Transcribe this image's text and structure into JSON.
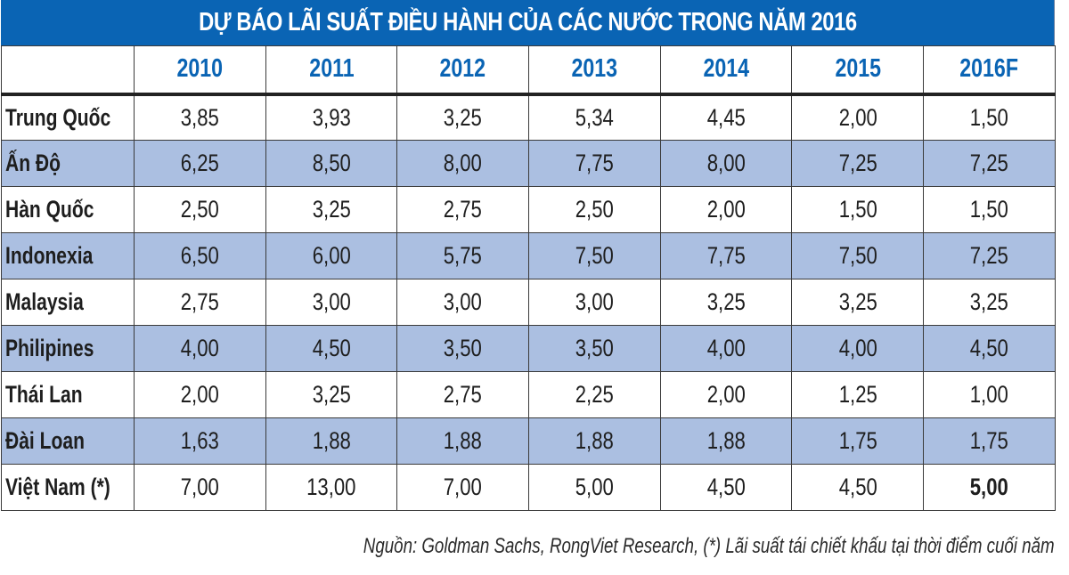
{
  "title": "DỰ BÁO LÃI SUẤT ĐIỀU HÀNH CỦA CÁC NƯỚC TRONG NĂM 2016",
  "header": {
    "corner": "",
    "years": [
      "2010",
      "2011",
      "2012",
      "2013",
      "2014",
      "2015",
      "2016F"
    ]
  },
  "rows": [
    {
      "country": "Trung Quốc",
      "values": [
        "3,85",
        "3,93",
        "3,25",
        "5,34",
        "4,45",
        "2,00",
        "1,50"
      ]
    },
    {
      "country": "Ấn Độ",
      "values": [
        "6,25",
        "8,50",
        "8,00",
        "7,75",
        "8,00",
        "7,25",
        "7,25"
      ]
    },
    {
      "country": "Hàn Quốc",
      "values": [
        "2,50",
        "3,25",
        "2,75",
        "2,50",
        "2,00",
        "1,50",
        "1,50"
      ]
    },
    {
      "country": "Indonexia",
      "values": [
        "6,50",
        "6,00",
        "5,75",
        "7,50",
        "7,75",
        "7,50",
        "7,25"
      ]
    },
    {
      "country": "Malaysia",
      "values": [
        "2,75",
        "3,00",
        "3,00",
        "3,00",
        "3,25",
        "3,25",
        "3,25"
      ]
    },
    {
      "country": "Philipines",
      "values": [
        "4,00",
        "4,50",
        "3,50",
        "3,50",
        "4,00",
        "4,00",
        "4,50"
      ]
    },
    {
      "country": "Thái Lan",
      "values": [
        "2,00",
        "3,25",
        "2,75",
        "2,25",
        "2,00",
        "1,25",
        "1,00"
      ]
    },
    {
      "country": "Đài Loan",
      "values": [
        "1,63",
        "1,88",
        "1,88",
        "1,88",
        "1,88",
        "1,75",
        "1,75"
      ]
    },
    {
      "country": "Việt Nam (*)",
      "values": [
        "7,00",
        "13,00",
        "7,00",
        "5,00",
        "4,50",
        "4,50",
        "5,00"
      ]
    }
  ],
  "source": "Nguồn: Goldman Sachs, RongViet Research, (*) Lãi suất tái chiết khấu tại thời điểm cuối năm",
  "colors": {
    "title_bg": "#0a64b4",
    "header_text": "#0a64b4",
    "alt_row_bg": "#abbfe1",
    "border": "#3a3a3a"
  },
  "chart_data": {
    "type": "table",
    "title": "DỰ BÁO LÃI SUẤT ĐIỀU HÀNH CỦA CÁC NƯỚC TRONG NĂM 2016",
    "columns": [
      "2010",
      "2011",
      "2012",
      "2013",
      "2014",
      "2015",
      "2016F"
    ],
    "categories": [
      "Trung Quốc",
      "Ấn Độ",
      "Hàn Quốc",
      "Indonexia",
      "Malaysia",
      "Philipines",
      "Thái Lan",
      "Đài Loan",
      "Việt Nam (*)"
    ],
    "series": [
      {
        "name": "Trung Quốc",
        "values": [
          3.85,
          3.93,
          3.25,
          5.34,
          4.45,
          2.0,
          1.5
        ]
      },
      {
        "name": "Ấn Độ",
        "values": [
          6.25,
          8.5,
          8.0,
          7.75,
          8.0,
          7.25,
          7.25
        ]
      },
      {
        "name": "Hàn Quốc",
        "values": [
          2.5,
          3.25,
          2.75,
          2.5,
          2.0,
          1.5,
          1.5
        ]
      },
      {
        "name": "Indonexia",
        "values": [
          6.5,
          6.0,
          5.75,
          7.5,
          7.75,
          7.5,
          7.25
        ]
      },
      {
        "name": "Malaysia",
        "values": [
          2.75,
          3.0,
          3.0,
          3.0,
          3.25,
          3.25,
          3.25
        ]
      },
      {
        "name": "Philipines",
        "values": [
          4.0,
          4.5,
          3.5,
          3.5,
          4.0,
          4.0,
          4.5
        ]
      },
      {
        "name": "Thái Lan",
        "values": [
          2.0,
          3.25,
          2.75,
          2.25,
          2.0,
          1.25,
          1.0
        ]
      },
      {
        "name": "Đài Loan",
        "values": [
          1.63,
          1.88,
          1.88,
          1.88,
          1.88,
          1.75,
          1.75
        ]
      },
      {
        "name": "Việt Nam (*)",
        "values": [
          7.0,
          13.0,
          7.0,
          5.0,
          4.5,
          4.5,
          5.0
        ]
      }
    ],
    "annotations": [
      "Nguồn: Goldman Sachs, RongViet Research, (*) Lãi suất tái chiết khấu tại thời điểm cuối năm"
    ],
    "highlight": {
      "row": "Việt Nam (*)",
      "column": "2016F",
      "style": "bold"
    }
  }
}
